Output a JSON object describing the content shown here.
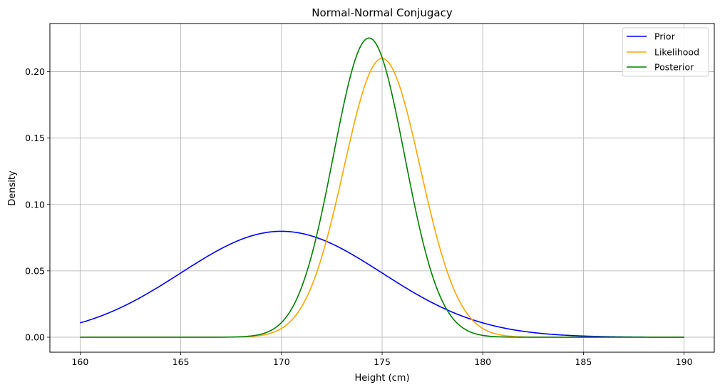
{
  "chart_data": {
    "type": "line",
    "title": "Normal-Normal Conjugacy",
    "xlabel": "Height (cm)",
    "ylabel": "Density",
    "xlim": [
      158.5,
      191.5
    ],
    "ylim": [
      -0.0113,
      0.2363
    ],
    "xticks": [
      160,
      165,
      170,
      175,
      180,
      185,
      190
    ],
    "xtick_labels": [
      "160",
      "165",
      "170",
      "175",
      "180",
      "185",
      "190"
    ],
    "yticks": [
      0.0,
      0.05,
      0.1,
      0.15,
      0.2
    ],
    "ytick_labels": [
      "0.00",
      "0.05",
      "0.10",
      "0.15",
      "0.20"
    ],
    "grid": true,
    "legend_position": "top-right",
    "x_range": [
      160,
      190
    ],
    "series": [
      {
        "name": "Prior",
        "color": "#0000ff",
        "distribution": "normal",
        "mean": 170,
        "sd": 5
      },
      {
        "name": "Likelihood",
        "color": "#ffa500",
        "distribution": "normal",
        "mean": 175,
        "sd": 1.9
      },
      {
        "name": "Posterior",
        "color": "#008000",
        "distribution": "normal",
        "mean": 174.35,
        "sd": 1.77
      }
    ]
  }
}
